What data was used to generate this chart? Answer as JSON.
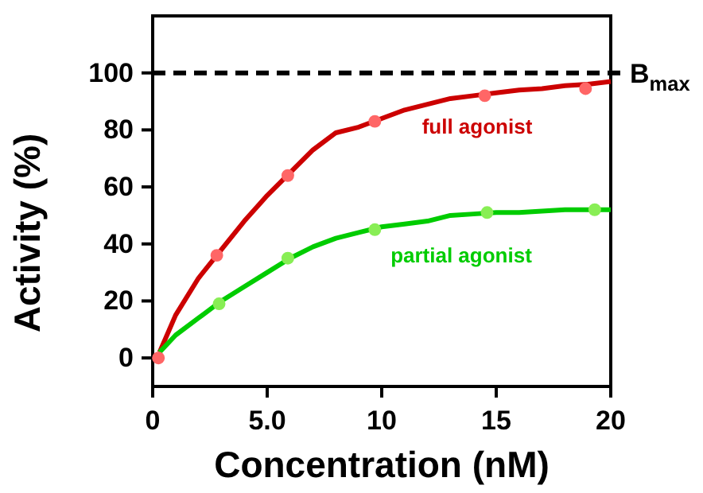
{
  "chart_data": {
    "type": "line",
    "xlabel": "Concentration (nM)",
    "ylabel": "Activity (%)",
    "xlim": [
      0,
      20
    ],
    "ylim": [
      -10,
      120
    ],
    "xticks": [
      0,
      {
        "value": 5,
        "label": "5.0"
      },
      10,
      15,
      20
    ],
    "yticks": [
      0,
      20,
      40,
      60,
      80,
      100
    ],
    "grid": false,
    "marker": "none",
    "line_style": "solid",
    "series": [
      {
        "name": "full agonist",
        "color": "#cc0000",
        "x": [
          0.3,
          1,
          2,
          3,
          4,
          5,
          6,
          7,
          8,
          9,
          10,
          11,
          12,
          13,
          14,
          15,
          16,
          17,
          18,
          19,
          20
        ],
        "values": [
          2,
          15,
          28,
          38,
          48,
          57,
          65,
          73,
          79,
          81,
          84,
          87,
          89,
          91,
          92,
          93,
          94,
          94.5,
          95.5,
          96,
          97
        ]
      },
      {
        "name": "partial agonist",
        "color": "#00cc00",
        "x": [
          0.3,
          1,
          2,
          3,
          4,
          5,
          6,
          7,
          8,
          9,
          10,
          11,
          12,
          13,
          14,
          15,
          16,
          17,
          18,
          19,
          20
        ],
        "values": [
          2,
          8,
          14,
          20,
          25,
          30,
          35,
          39,
          42,
          44,
          46,
          47,
          48,
          50,
          50.5,
          51,
          51,
          51.5,
          52,
          52,
          52
        ]
      },
      {
        "type": "scatter",
        "marker": "circle",
        "color": "#ff6666",
        "x": [
          0.25,
          2.8,
          5.9,
          9.7,
          14.5,
          18.9
        ],
        "values": [
          0,
          36,
          64,
          83,
          92,
          94.5
        ]
      },
      {
        "type": "scatter",
        "marker": "circle",
        "color": "#88ee55",
        "x": [
          2.9,
          5.9,
          9.7,
          14.6,
          19.3
        ],
        "values": [
          19,
          35,
          45,
          51,
          52
        ]
      }
    ],
    "ref_lines": [
      {
        "axis": "y",
        "value": 100,
        "label": "B$_{max}$",
        "color": "#000000",
        "line_style": "dashed"
      }
    ]
  }
}
